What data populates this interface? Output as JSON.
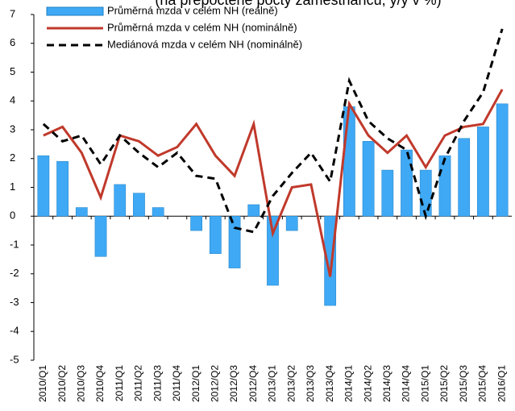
{
  "chart_data": {
    "type": "bar",
    "title": "(na přepočtené počty zaměstnanců, y/y v %)",
    "categories": [
      "2010/Q1",
      "2010/Q2",
      "2010/Q3",
      "2010/Q4",
      "2011/Q1",
      "2011/Q2",
      "2011/Q3",
      "2011/Q4",
      "2012/Q1",
      "2012/Q2",
      "2012/Q3",
      "2012/Q4",
      "2013/Q1",
      "2013/Q2",
      "2013/Q3",
      "2013/Q4",
      "2014/Q1",
      "2014/Q2",
      "2014/Q3",
      "2014/Q4",
      "2015/Q1",
      "2015/Q2",
      "2015/Q3",
      "2015/Q4",
      "2016/Q1"
    ],
    "series": [
      {
        "name": "Průměrná mzda v celém NH (reálně)",
        "type": "bar",
        "color": "#3fa9f5",
        "values": [
          2.1,
          1.9,
          0.3,
          -1.4,
          1.1,
          0.8,
          0.3,
          0,
          -0.5,
          -1.3,
          -1.8,
          0.4,
          -2.4,
          -0.5,
          0,
          -3.1,
          3.8,
          2.6,
          1.6,
          2.3,
          1.6,
          2.1,
          2.7,
          3.1,
          3.9
        ]
      },
      {
        "name": "Průměrná mzda v celém NH (nominálně)",
        "type": "line",
        "color": "#c0392b",
        "values": [
          2.8,
          3.1,
          2.2,
          0.65,
          2.8,
          2.6,
          2.1,
          2.4,
          3.2,
          2.1,
          1.4,
          3.2,
          -0.6,
          1.0,
          1.1,
          -2.1,
          3.9,
          2.8,
          2.2,
          2.8,
          1.7,
          2.8,
          3.1,
          3.2,
          4.4
        ]
      },
      {
        "name": "Mediánová mzda v celém NH (nominálně)",
        "type": "line",
        "dashed": true,
        "color": "#000000",
        "values": [
          3.2,
          2.6,
          2.8,
          1.8,
          2.8,
          2.2,
          1.7,
          2.2,
          1.4,
          1.3,
          -0.4,
          -0.55,
          0.7,
          1.5,
          2.2,
          1.2,
          4.7,
          3.3,
          2.7,
          2.3,
          0.0,
          2.0,
          3.3,
          4.3,
          6.5
        ]
      }
    ],
    "ylim": [
      -5,
      7
    ],
    "yticks": [
      -5,
      -4,
      -3,
      -2,
      -1,
      0,
      1,
      2,
      3,
      4,
      5,
      6,
      7
    ],
    "grid": false
  }
}
